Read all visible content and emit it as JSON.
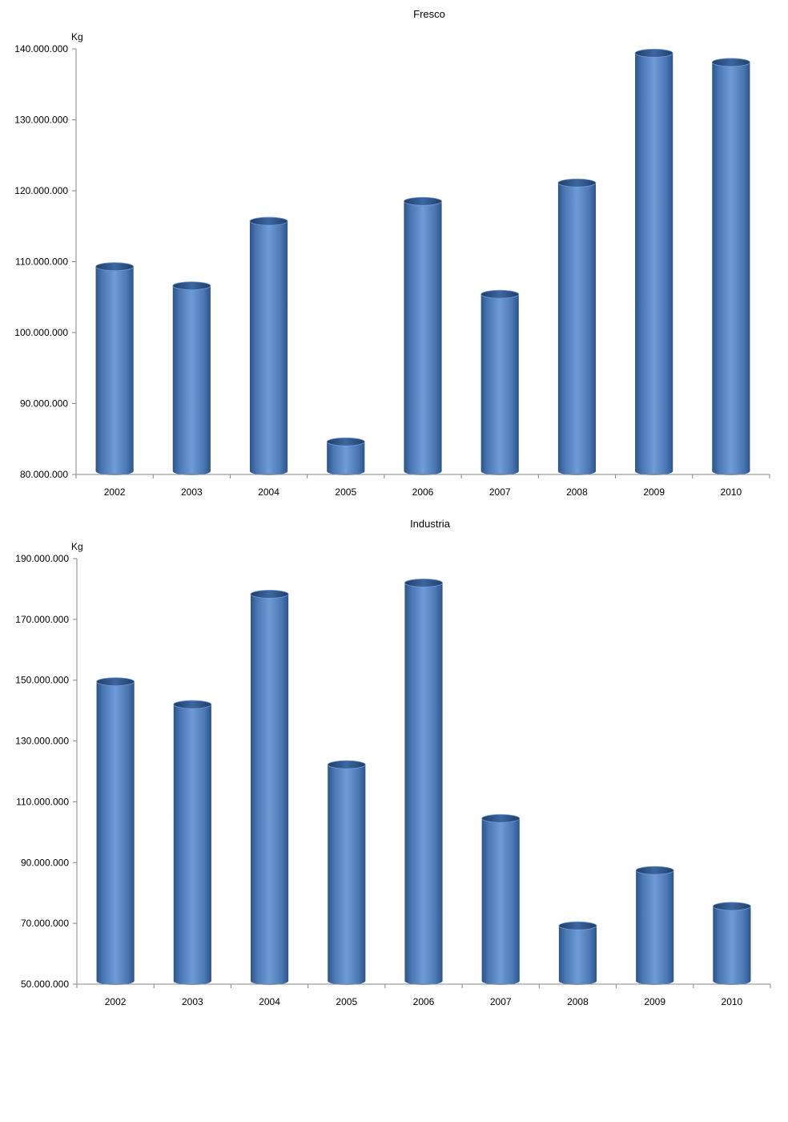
{
  "chart_data": [
    {
      "type": "bar",
      "title": "Fresco",
      "ylabel": "Kg",
      "xlabel": "",
      "categories": [
        "2002",
        "2003",
        "2004",
        "2005",
        "2006",
        "2007",
        "2008",
        "2009",
        "2010"
      ],
      "values": [
        109300000,
        106600000,
        115700000,
        84600000,
        118500000,
        105400000,
        121100000,
        139400000,
        138100000
      ],
      "ylim": [
        80000000,
        140000000
      ],
      "yticks": [
        80000000,
        90000000,
        100000000,
        110000000,
        120000000,
        130000000,
        140000000
      ],
      "ytick_labels": [
        "80.000.000",
        "90.000.000",
        "100.000.000",
        "110.000.000",
        "120.000.000",
        "130.000.000",
        "140.000.000"
      ],
      "bar_color": "#4f81bd",
      "grid": false,
      "legend": "none"
    },
    {
      "type": "bar",
      "title": "Industria",
      "ylabel": "Kg",
      "xlabel": "",
      "categories": [
        "2002",
        "2003",
        "2004",
        "2005",
        "2006",
        "2007",
        "2008",
        "2009",
        "2010"
      ],
      "values": [
        149500000,
        142000000,
        178300000,
        122200000,
        182000000,
        104500000,
        69200000,
        87400000,
        75600000
      ],
      "ylim": [
        50000000,
        190000000
      ],
      "yticks": [
        50000000,
        70000000,
        90000000,
        110000000,
        130000000,
        150000000,
        170000000,
        190000000
      ],
      "ytick_labels": [
        "50.000.000",
        "70.000.000",
        "90.000.000",
        "110.000.000",
        "130.000.000",
        "150.000.000",
        "170.000.000",
        "190.000.000"
      ],
      "bar_color": "#4f81bd",
      "grid": false,
      "legend": "none"
    }
  ]
}
